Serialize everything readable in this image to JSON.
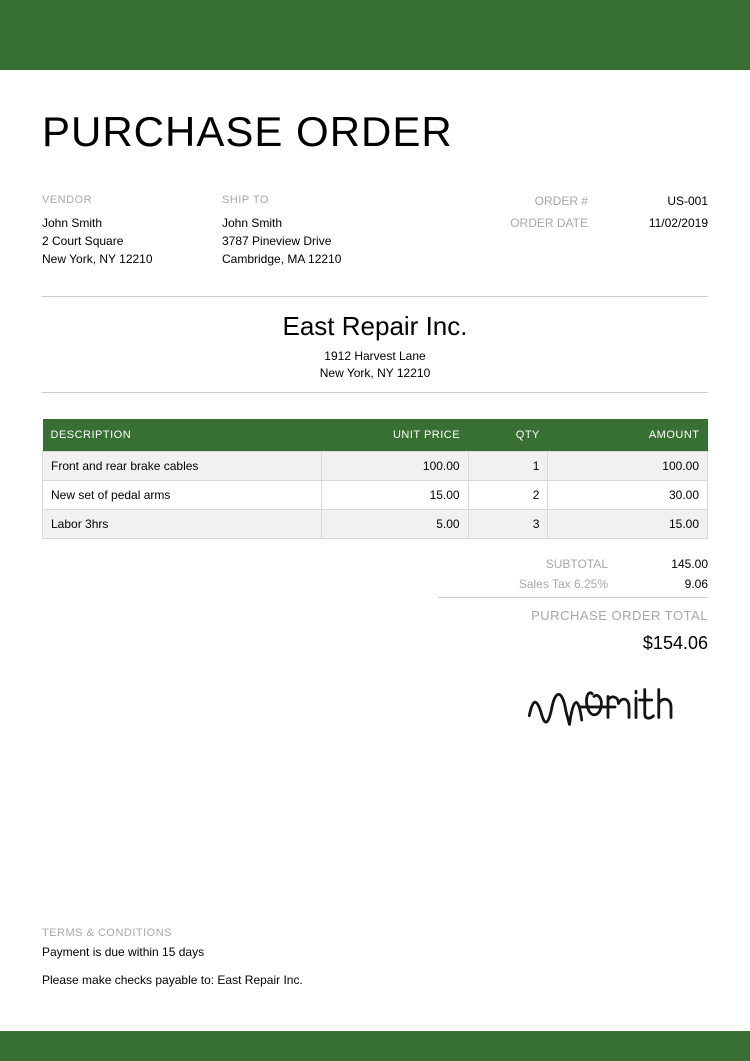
{
  "colors": {
    "accent": "#386f32",
    "muted": "#a8a8a8",
    "row_alt": "#f1f1f1",
    "border": "#d9d9d9"
  },
  "title": "PURCHASE ORDER",
  "vendor": {
    "label": "VENDOR",
    "name": "John Smith",
    "street": "2 Court Square",
    "city": "New York, NY 12210"
  },
  "shipto": {
    "label": "SHIP TO",
    "name": "John Smith",
    "street": "3787 Pineview Drive",
    "city": "Cambridge, MA 12210"
  },
  "meta": {
    "order_label": "ORDER #",
    "order_value": "US-001",
    "date_label": "ORDER DATE",
    "date_value": "11/02/2019"
  },
  "company": {
    "name": "East Repair Inc.",
    "street": "1912 Harvest Lane",
    "city": "New York, NY 12210"
  },
  "table": {
    "headers": {
      "desc": "DESCRIPTION",
      "price": "UNIT PRICE",
      "qty": "QTY",
      "amount": "AMOUNT"
    },
    "rows": [
      {
        "desc": "Front and rear brake cables",
        "price": "100.00",
        "qty": "1",
        "amount": "100.00"
      },
      {
        "desc": "New set of pedal arms",
        "price": "15.00",
        "qty": "2",
        "amount": "30.00"
      },
      {
        "desc": "Labor 3hrs",
        "price": "5.00",
        "qty": "3",
        "amount": "15.00"
      }
    ]
  },
  "totals": {
    "subtotal_label": "SUBTOTAL",
    "subtotal_value": "145.00",
    "tax_label": "Sales Tax 6.25%",
    "tax_value": "9.06",
    "grand_label": "PURCHASE ORDER TOTAL",
    "grand_value": "$154.06"
  },
  "signature_name": "John Smith",
  "terms": {
    "heading": "TERMS & CONDITIONS",
    "line1": "Payment is due within 15 days",
    "line2": "Please make checks payable to: East Repair Inc."
  }
}
